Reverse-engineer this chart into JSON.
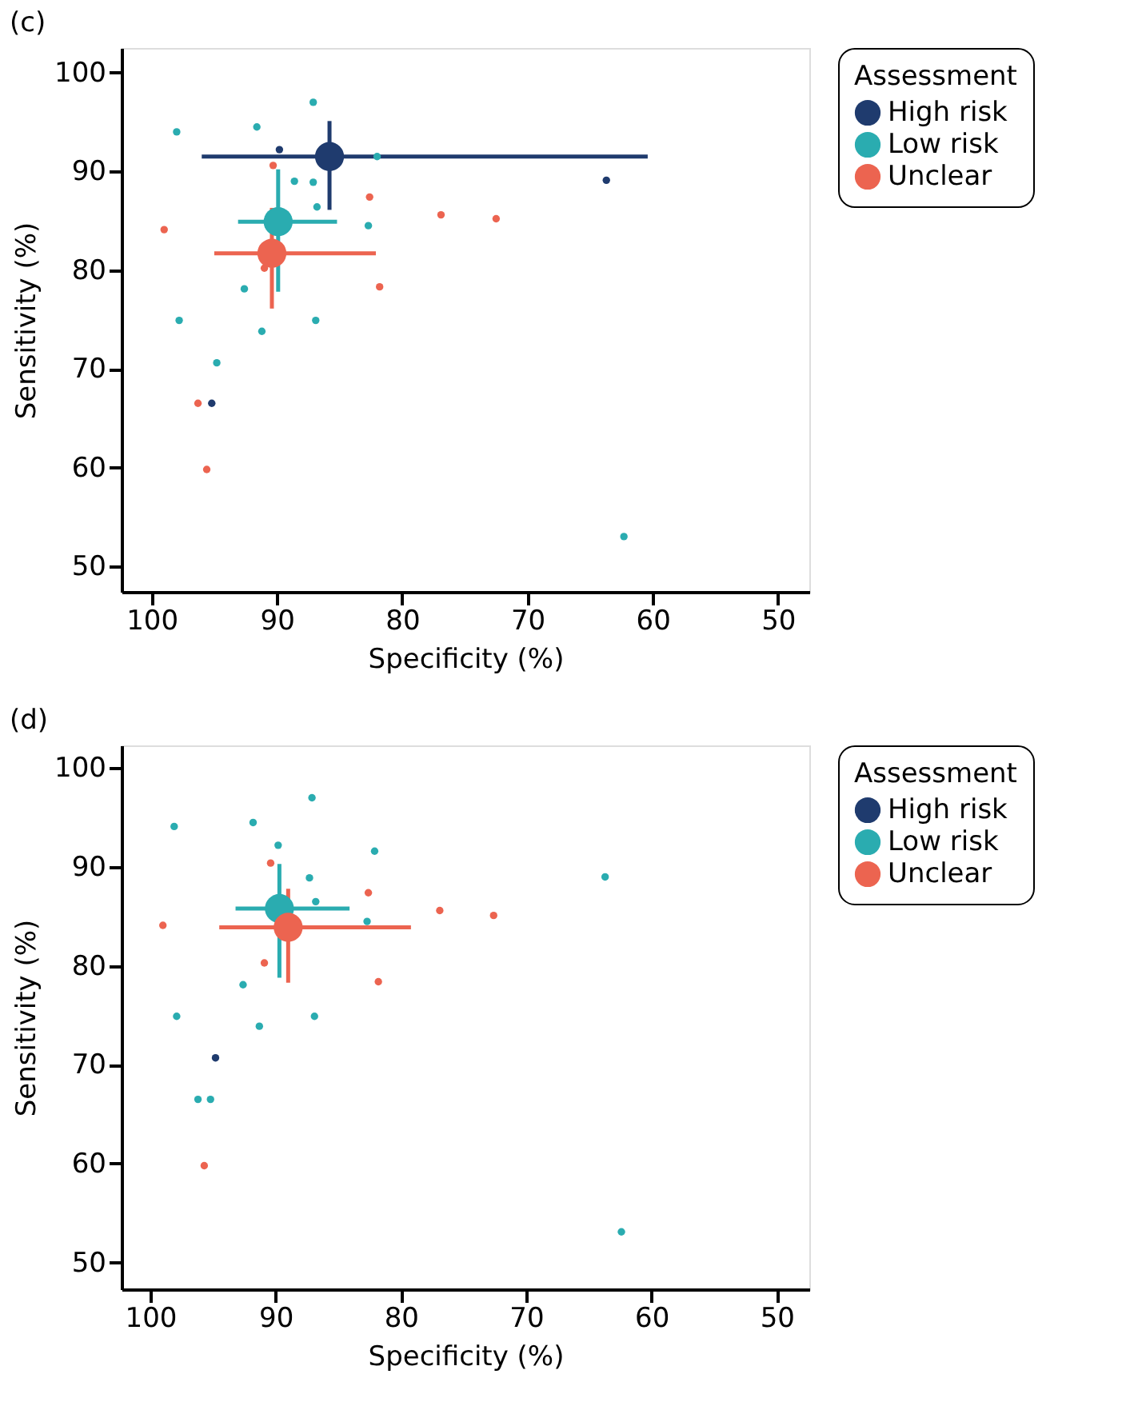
{
  "chart_data": [
    {
      "type": "scatter",
      "title": "(c)",
      "xlabel": "Specificity (%)",
      "ylabel": "Sensitivity (%)",
      "legend_title": "Assessment",
      "legend": "right",
      "grid": false,
      "marker": "circle",
      "xlim": [
        102.4,
        47.5
      ],
      "ylim": [
        47.4,
        102.5
      ],
      "xticks": [
        100,
        90,
        80,
        70,
        60,
        50
      ],
      "yticks": [
        50,
        60,
        70,
        80,
        90,
        100
      ],
      "series": [
        {
          "name": "High risk",
          "color": "#1f3b6e",
          "x": [
            89.8,
            63.7,
            95.2
          ],
          "values": [
            92.2,
            89.1,
            66.5
          ]
        },
        {
          "name": "Low risk",
          "color": "#2aacb0",
          "x": [
            98.0,
            91.6,
            87.1,
            82.0,
            88.6,
            87.1,
            86.8,
            82.7,
            92.6,
            97.8,
            91.2,
            86.9,
            94.8,
            62.3
          ],
          "values": [
            94.0,
            94.5,
            97.0,
            91.5,
            89.0,
            88.9,
            86.4,
            84.5,
            78.1,
            74.9,
            73.8,
            74.9,
            70.6,
            53.0
          ]
        },
        {
          "name": "Unclear",
          "color": "#ec6450",
          "x": [
            90.3,
            82.6,
            76.9,
            72.5,
            99.0,
            91.0,
            81.8,
            96.3,
            95.6
          ],
          "values": [
            90.6,
            87.4,
            85.6,
            85.2,
            84.1,
            80.2,
            78.3,
            66.5,
            59.8
          ]
        },
        {
          "color": "#1f3b6e",
          "x": [
            85.8
          ],
          "values": [
            91.5
          ],
          "xerrors": [
            [
              96.0,
              60.4
            ]
          ],
          "errors": [
            [
              86.1,
              95.1
            ]
          ]
        },
        {
          "color": "#2aacb0",
          "x": [
            89.9
          ],
          "values": [
            84.9
          ],
          "xerrors": [
            [
              93.1,
              85.2
            ]
          ],
          "errors": [
            [
              77.8,
              90.2
            ]
          ]
        },
        {
          "color": "#ec6450",
          "x": [
            90.4
          ],
          "values": [
            81.7
          ],
          "xerrors": [
            [
              95.0,
              82.1
            ]
          ],
          "errors": [
            [
              76.1,
              86.3
            ]
          ]
        }
      ]
    },
    {
      "type": "scatter",
      "title": "(d)",
      "xlabel": "Specificity (%)",
      "ylabel": "Sensitivity (%)",
      "legend_title": "Assessment",
      "legend": "right",
      "grid": false,
      "marker": "circle",
      "xlim": [
        102.3,
        47.4
      ],
      "ylim": [
        47.3,
        102.3
      ],
      "xticks": [
        100,
        90,
        80,
        70,
        60,
        50
      ],
      "yticks": [
        50,
        60,
        70,
        80,
        90,
        100
      ],
      "series": [
        {
          "name": "High risk",
          "color": "#1f3b6e",
          "x": [
            94.8
          ],
          "values": [
            70.7
          ]
        },
        {
          "name": "Low risk",
          "color": "#2aacb0",
          "x": [
            98.1,
            91.8,
            87.1,
            89.8,
            82.1,
            87.3,
            86.8,
            82.7,
            63.7,
            92.6,
            97.9,
            91.3,
            86.9,
            96.2,
            95.2,
            62.4
          ],
          "values": [
            94.1,
            94.5,
            97.0,
            92.2,
            91.6,
            88.9,
            86.5,
            84.5,
            89.0,
            78.1,
            74.9,
            73.9,
            74.9,
            66.5,
            66.5,
            53.1
          ]
        },
        {
          "name": "Unclear",
          "color": "#ec6450",
          "x": [
            90.4,
            82.6,
            76.9,
            72.6,
            99.0,
            90.9,
            81.8,
            95.7
          ],
          "values": [
            90.4,
            87.4,
            85.6,
            85.1,
            84.1,
            80.3,
            78.4,
            59.8
          ]
        },
        {
          "color": "#2aacb0",
          "x": [
            89.7
          ],
          "values": [
            85.8
          ],
          "xerrors": [
            [
              93.2,
              84.1
            ]
          ],
          "errors": [
            [
              78.8,
              90.3
            ]
          ]
        },
        {
          "color": "#ec6450",
          "x": [
            89.0
          ],
          "values": [
            83.9
          ],
          "xerrors": [
            [
              94.5,
              79.2
            ]
          ],
          "errors": [
            [
              78.3,
              87.8
            ]
          ]
        }
      ]
    }
  ]
}
